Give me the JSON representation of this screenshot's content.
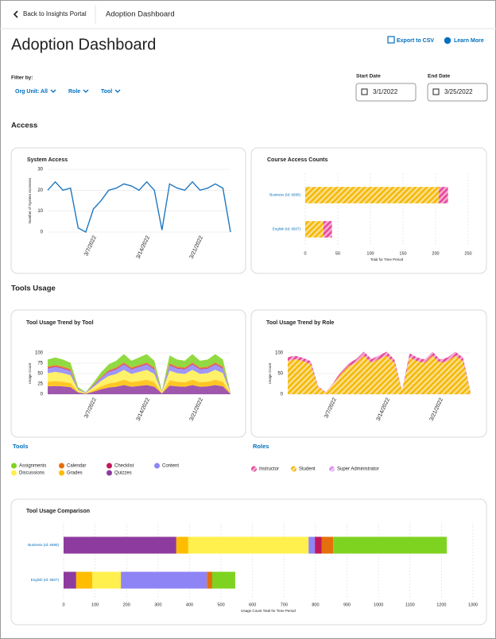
{
  "nav": {
    "back": "Back to Insights Portal",
    "current": "Adoption Dashboard"
  },
  "title": "Adoption Dashboard",
  "actions": [
    "Export to CSV",
    "Learn More"
  ],
  "filters": {
    "label": "Filter by:",
    "items": [
      "Org Unit: All",
      "Role",
      "Tool"
    ]
  },
  "dates": [
    {
      "label": "Start Date",
      "value": "3/1/2022"
    },
    {
      "label": "End Date",
      "value": "3/25/2022"
    }
  ],
  "sections": [
    "Access",
    "Tools Usage"
  ],
  "chart_data": [
    {
      "type": "line",
      "title": "System Access",
      "x": [
        "3/1/2022",
        "3/2/2022",
        "3/3/2022",
        "3/4/2022",
        "3/5/2022",
        "3/6/2022",
        "3/7/2022",
        "3/8/2022",
        "3/9/2022",
        "3/10/2022",
        "3/11/2022",
        "3/12/2022",
        "3/13/2022",
        "3/14/2022",
        "3/15/2022",
        "3/16/2022",
        "3/17/2022",
        "3/18/2022",
        "3/19/2022",
        "3/20/2022",
        "3/21/2022",
        "3/22/2022",
        "3/23/2022",
        "3/24/2022",
        "3/25/2022"
      ],
      "xticks": [
        "3/7/2022",
        "3/14/2022",
        "3/21/2022"
      ],
      "values": [
        20,
        24,
        20,
        21,
        2,
        0,
        11,
        15,
        20,
        21,
        23,
        22,
        20,
        24,
        20,
        1,
        23,
        21,
        20,
        24,
        20,
        21,
        23,
        21,
        0
      ],
      "color": "#1f78c1",
      "ylabel": "Number of System Accesses",
      "ylim": [
        0,
        30
      ],
      "yticks": [
        0,
        10,
        20,
        30
      ],
      "grid": true
    },
    {
      "type": "hbar",
      "title": "Course Access Counts",
      "categories": [
        "Business (Id: 6695)",
        "English (Id: 6607)"
      ],
      "series": [
        {
          "color": "#f5b700",
          "values": [
            205,
            28
          ]
        },
        {
          "color": "#e8459a",
          "values": [
            14,
            13
          ]
        }
      ],
      "pattern": "hatch",
      "xlabel": "Total for Time Period",
      "xlim": [
        0,
        250
      ],
      "xticks": [
        0,
        50,
        100,
        150,
        200,
        250
      ],
      "grid": true
    },
    {
      "type": "area",
      "title": "Tool Usage Trend by Tool",
      "legend_title": "Tools",
      "x": [
        "3/1/2022",
        "3/2/2022",
        "3/3/2022",
        "3/4/2022",
        "3/5/2022",
        "3/6/2022",
        "3/7/2022",
        "3/8/2022",
        "3/9/2022",
        "3/10/2022",
        "3/11/2022",
        "3/12/2022",
        "3/13/2022",
        "3/14/2022",
        "3/15/2022",
        "3/16/2022",
        "3/17/2022",
        "3/18/2022",
        "3/19/2022",
        "3/20/2022",
        "3/21/2022",
        "3/22/2022",
        "3/23/2022",
        "3/24/2022",
        "3/25/2022"
      ],
      "xticks": [
        "3/7/2022",
        "3/14/2022",
        "3/21/2022"
      ],
      "series": [
        {
          "name": "Quizzes",
          "color": "#8e3b9f",
          "values": [
            19,
            20,
            19,
            17,
            4,
            1,
            6,
            12,
            16,
            18,
            22,
            18,
            20,
            22,
            18,
            2,
            21,
            19,
            18,
            22,
            18,
            19,
            22,
            19,
            1
          ]
        },
        {
          "name": "Grades",
          "color": "#ffbd00",
          "values": [
            11,
            12,
            11,
            10,
            2,
            1,
            4,
            7,
            10,
            11,
            13,
            11,
            12,
            13,
            11,
            1,
            13,
            11,
            11,
            13,
            11,
            11,
            13,
            11,
            1
          ]
        },
        {
          "name": "Discussions",
          "color": "#fff04d",
          "values": [
            21,
            22,
            21,
            19,
            4,
            1,
            7,
            13,
            18,
            20,
            24,
            20,
            22,
            24,
            20,
            2,
            23,
            21,
            20,
            24,
            20,
            21,
            24,
            21,
            1
          ]
        },
        {
          "name": "Content",
          "color": "#8f84f5",
          "values": [
            11,
            12,
            11,
            10,
            2,
            1,
            4,
            7,
            10,
            11,
            13,
            11,
            12,
            13,
            11,
            1,
            13,
            11,
            11,
            13,
            11,
            11,
            13,
            11,
            1
          ]
        },
        {
          "name": "Checklist",
          "color": "#c2185b",
          "values": [
            2,
            2,
            2,
            2,
            0,
            0,
            1,
            1,
            2,
            2,
            2,
            2,
            2,
            2,
            2,
            0,
            2,
            2,
            2,
            2,
            2,
            2,
            2,
            2,
            0
          ]
        },
        {
          "name": "Calendar",
          "color": "#e4700b",
          "values": [
            3,
            3,
            3,
            3,
            1,
            0,
            1,
            2,
            2,
            3,
            3,
            3,
            3,
            3,
            3,
            0,
            3,
            3,
            3,
            3,
            3,
            3,
            3,
            3,
            0
          ]
        },
        {
          "name": "Assignments",
          "color": "#7ed321",
          "values": [
            17,
            18,
            17,
            15,
            4,
            1,
            5,
            11,
            14,
            16,
            20,
            16,
            18,
            20,
            16,
            2,
            19,
            17,
            16,
            20,
            16,
            17,
            20,
            17,
            1
          ]
        }
      ],
      "ylabel": "Usage Count",
      "ylim": [
        0,
        100
      ],
      "yticks": [
        0,
        25,
        50,
        75,
        100
      ],
      "grid": true
    },
    {
      "type": "area",
      "title": "Tool Usage Trend by Role",
      "legend_title": "Roles",
      "x": [
        "3/1/2022",
        "3/2/2022",
        "3/3/2022",
        "3/4/2022",
        "3/5/2022",
        "3/6/2022",
        "3/7/2022",
        "3/8/2022",
        "3/9/2022",
        "3/10/2022",
        "3/11/2022",
        "3/12/2022",
        "3/13/2022",
        "3/14/2022",
        "3/15/2022",
        "3/16/2022",
        "3/17/2022",
        "3/18/2022",
        "3/19/2022",
        "3/20/2022",
        "3/21/2022",
        "3/22/2022",
        "3/23/2022",
        "3/24/2022",
        "3/25/2022"
      ],
      "xticks": [
        "3/7/2022",
        "3/14/2022",
        "3/21/2022"
      ],
      "series": [
        {
          "name": "Student",
          "color": "#f5b700",
          "values": [
            80,
            85,
            80,
            72,
            17,
            4,
            25,
            50,
            68,
            76,
            93,
            76,
            85,
            93,
            76,
            8,
            89,
            80,
            76,
            93,
            76,
            80,
            93,
            80,
            4
          ]
        },
        {
          "name": "Instructor",
          "color": "#e8459a",
          "values": [
            10,
            8,
            8,
            8,
            2,
            1,
            3,
            5,
            7,
            9,
            10,
            9,
            9,
            10,
            8,
            1,
            10,
            9,
            8,
            10,
            8,
            9,
            10,
            9,
            1
          ]
        },
        {
          "name": "Super Administrator",
          "color": "#d98ef0",
          "values": [
            0,
            0,
            0,
            0,
            0,
            0,
            0,
            0,
            0,
            0,
            0,
            0,
            0,
            0,
            0,
            0,
            0,
            0,
            0,
            0,
            0,
            0,
            0,
            0,
            0
          ]
        }
      ],
      "pattern": "hatch",
      "ylabel": "Usage Count",
      "ylim": [
        0,
        100
      ],
      "yticks": [
        0,
        50,
        100
      ],
      "grid": true
    },
    {
      "type": "hbar",
      "title": "Tool Usage Comparison",
      "categories": [
        "Business (Id: 6695)",
        "English (Id: 6607)"
      ],
      "series": [
        {
          "color": "#8e3b9f",
          "values": [
            358,
            40
          ]
        },
        {
          "color": "#ffbd00",
          "values": [
            38,
            51
          ]
        },
        {
          "color": "#fff04d",
          "values": [
            382,
            91
          ]
        },
        {
          "color": "#8f84f5",
          "values": [
            20,
            273
          ]
        },
        {
          "color": "#c2185b",
          "values": [
            22,
            0
          ]
        },
        {
          "color": "#e4700b",
          "values": [
            36,
            17
          ]
        },
        {
          "color": "#7ed321",
          "values": [
            361,
            73
          ]
        }
      ],
      "xlabel": "Usage Count Total for Time Period",
      "xlim": [
        0,
        1300
      ],
      "xticks": [
        0,
        100,
        200,
        300,
        400,
        500,
        600,
        700,
        800,
        900,
        1000,
        1100,
        1200,
        1300
      ],
      "grid": true
    }
  ]
}
